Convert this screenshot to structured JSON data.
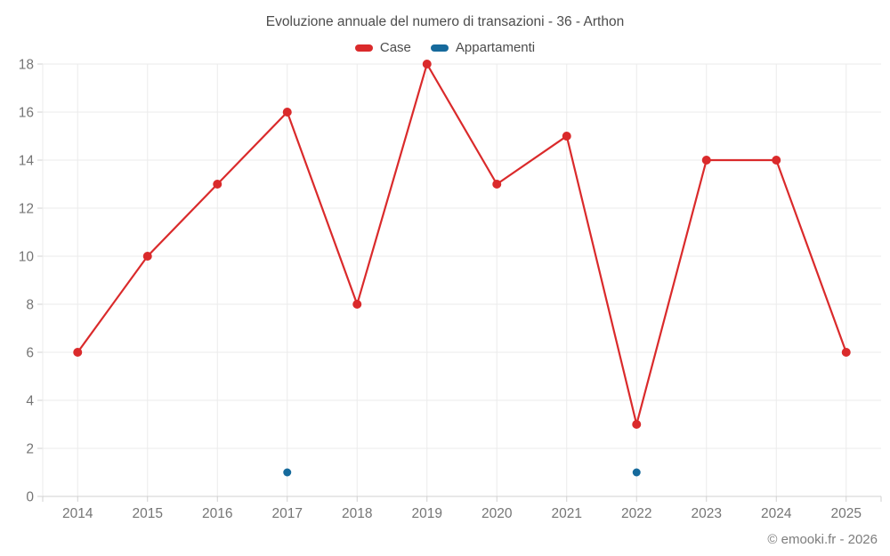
{
  "chart_data": {
    "type": "line",
    "title": "Evoluzione annuale del numero di transazioni - 36 - Arthon",
    "categories": [
      "2014",
      "2015",
      "2016",
      "2017",
      "2018",
      "2019",
      "2020",
      "2021",
      "2022",
      "2023",
      "2024",
      "2025"
    ],
    "series": [
      {
        "name": "Case",
        "color": "#da2a2b",
        "marker_radius": 5,
        "values": [
          6,
          10,
          13,
          16,
          8,
          18,
          13,
          15,
          3,
          14,
          14,
          6
        ]
      },
      {
        "name": "Appartamenti",
        "color": "#166a9c",
        "marker_radius": 4.5,
        "values": [
          null,
          null,
          null,
          1,
          null,
          null,
          null,
          null,
          1,
          null,
          null,
          null
        ]
      }
    ],
    "xlabel": "",
    "ylabel": "",
    "ylim": [
      0,
      18
    ],
    "ytick_step": 2,
    "grid": true,
    "legend_position": "top",
    "annotation": "© emooki.fr - 2026"
  },
  "theme": {
    "grid_color": "#ebebeb",
    "axis_color": "#d0d0d0",
    "tick_label_color": "#757575",
    "title_color": "#4c4c4c"
  }
}
